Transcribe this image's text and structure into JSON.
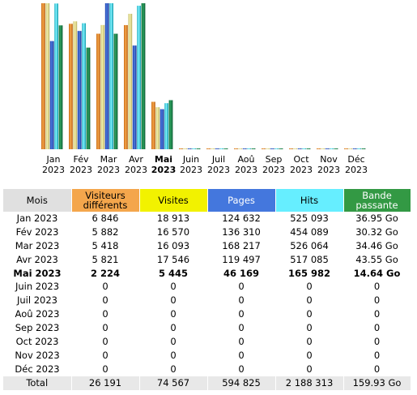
{
  "colors": {
    "visitors": "#f4a64c",
    "visits": "#f2f200",
    "pages": "#4477dd",
    "hits": "#66eeff",
    "bandwidth": "#339944",
    "header_grey": "#e0e0e0"
  },
  "chart_data": {
    "type": "bar",
    "categories": [
      "Jan 2023",
      "Fév 2023",
      "Mar 2023",
      "Avr 2023",
      "Mai 2023",
      "Juin 2023",
      "Juil 2023",
      "Aoû 2023",
      "Sep 2023",
      "Oct 2023",
      "Nov 2023",
      "Déc 2023"
    ],
    "current_index": 4,
    "series": [
      {
        "name": "Visiteurs différents",
        "values": [
          6846,
          5882,
          5418,
          5821,
          2224,
          0,
          0,
          0,
          0,
          0,
          0,
          0
        ]
      },
      {
        "name": "Visites",
        "values": [
          18913,
          16570,
          16093,
          17546,
          5445,
          0,
          0,
          0,
          0,
          0,
          0,
          0
        ]
      },
      {
        "name": "Pages",
        "values": [
          124632,
          136310,
          168217,
          119497,
          46169,
          0,
          0,
          0,
          0,
          0,
          0,
          0
        ]
      },
      {
        "name": "Hits",
        "values": [
          525093,
          454089,
          526064,
          517085,
          165982,
          0,
          0,
          0,
          0,
          0,
          0,
          0
        ]
      },
      {
        "name": "Bande passante",
        "values": [
          36.95,
          30.32,
          34.46,
          43.55,
          14.64,
          0,
          0,
          0,
          0,
          0,
          0,
          0
        ]
      }
    ]
  },
  "months": [
    {
      "m": "Jan",
      "y": "2023"
    },
    {
      "m": "Fév",
      "y": "2023"
    },
    {
      "m": "Mar",
      "y": "2023"
    },
    {
      "m": "Avr",
      "y": "2023"
    },
    {
      "m": "Mai",
      "y": "2023"
    },
    {
      "m": "Juin",
      "y": "2023"
    },
    {
      "m": "Juil",
      "y": "2023"
    },
    {
      "m": "Aoû",
      "y": "2023"
    },
    {
      "m": "Sep",
      "y": "2023"
    },
    {
      "m": "Oct",
      "y": "2023"
    },
    {
      "m": "Nov",
      "y": "2023"
    },
    {
      "m": "Déc",
      "y": "2023"
    }
  ],
  "table": {
    "headers": {
      "mois": "Mois",
      "visitors": "Visiteurs différents",
      "visits": "Visites",
      "pages": "Pages",
      "hits": "Hits",
      "bandwidth": "Bande passante"
    },
    "rows": [
      {
        "mois": "Jan 2023",
        "visitors": "6 846",
        "visits": "18 913",
        "pages": "124 632",
        "hits": "525 093",
        "bandwidth": "36.95 Go"
      },
      {
        "mois": "Fév 2023",
        "visitors": "5 882",
        "visits": "16 570",
        "pages": "136 310",
        "hits": "454 089",
        "bandwidth": "30.32 Go"
      },
      {
        "mois": "Mar 2023",
        "visitors": "5 418",
        "visits": "16 093",
        "pages": "168 217",
        "hits": "526 064",
        "bandwidth": "34.46 Go"
      },
      {
        "mois": "Avr 2023",
        "visitors": "5 821",
        "visits": "17 546",
        "pages": "119 497",
        "hits": "517 085",
        "bandwidth": "43.55 Go"
      },
      {
        "mois": "Mai 2023",
        "visitors": "2 224",
        "visits": "5 445",
        "pages": "46 169",
        "hits": "165 982",
        "bandwidth": "14.64 Go"
      },
      {
        "mois": "Juin 2023",
        "visitors": "0",
        "visits": "0",
        "pages": "0",
        "hits": "0",
        "bandwidth": "0"
      },
      {
        "mois": "Juil 2023",
        "visitors": "0",
        "visits": "0",
        "pages": "0",
        "hits": "0",
        "bandwidth": "0"
      },
      {
        "mois": "Aoû 2023",
        "visitors": "0",
        "visits": "0",
        "pages": "0",
        "hits": "0",
        "bandwidth": "0"
      },
      {
        "mois": "Sep 2023",
        "visitors": "0",
        "visits": "0",
        "pages": "0",
        "hits": "0",
        "bandwidth": "0"
      },
      {
        "mois": "Oct 2023",
        "visitors": "0",
        "visits": "0",
        "pages": "0",
        "hits": "0",
        "bandwidth": "0"
      },
      {
        "mois": "Nov 2023",
        "visitors": "0",
        "visits": "0",
        "pages": "0",
        "hits": "0",
        "bandwidth": "0"
      },
      {
        "mois": "Déc 2023",
        "visitors": "0",
        "visits": "0",
        "pages": "0",
        "hits": "0",
        "bandwidth": "0"
      }
    ],
    "total": {
      "mois": "Total",
      "visitors": "26 191",
      "visits": "74 567",
      "pages": "594 825",
      "hits": "2 188 313",
      "bandwidth": "159.93 Go"
    }
  }
}
